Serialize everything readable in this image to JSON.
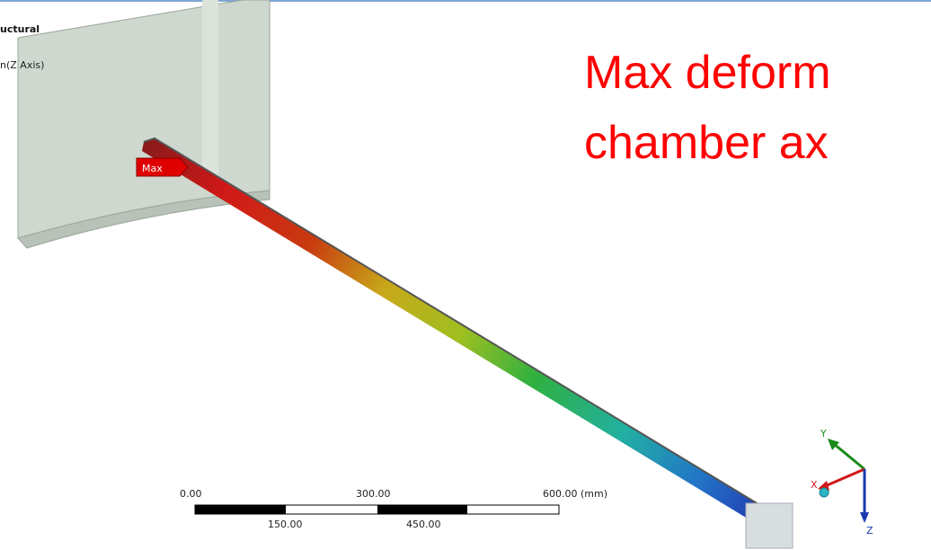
{
  "header": {
    "title": "uctural",
    "subtitle": "n(Z Axis)"
  },
  "annotation": {
    "lines": [
      "Max deform",
      "chamber ax"
    ]
  },
  "probe": {
    "label": "Max"
  },
  "scale_bar": {
    "top_labels": [
      "0.00",
      "300.00",
      "600.00 (mm)"
    ],
    "bottom_labels": [
      "150.00",
      "450.00"
    ]
  },
  "triad": {
    "axes": [
      "Y",
      "X",
      "Z"
    ]
  }
}
